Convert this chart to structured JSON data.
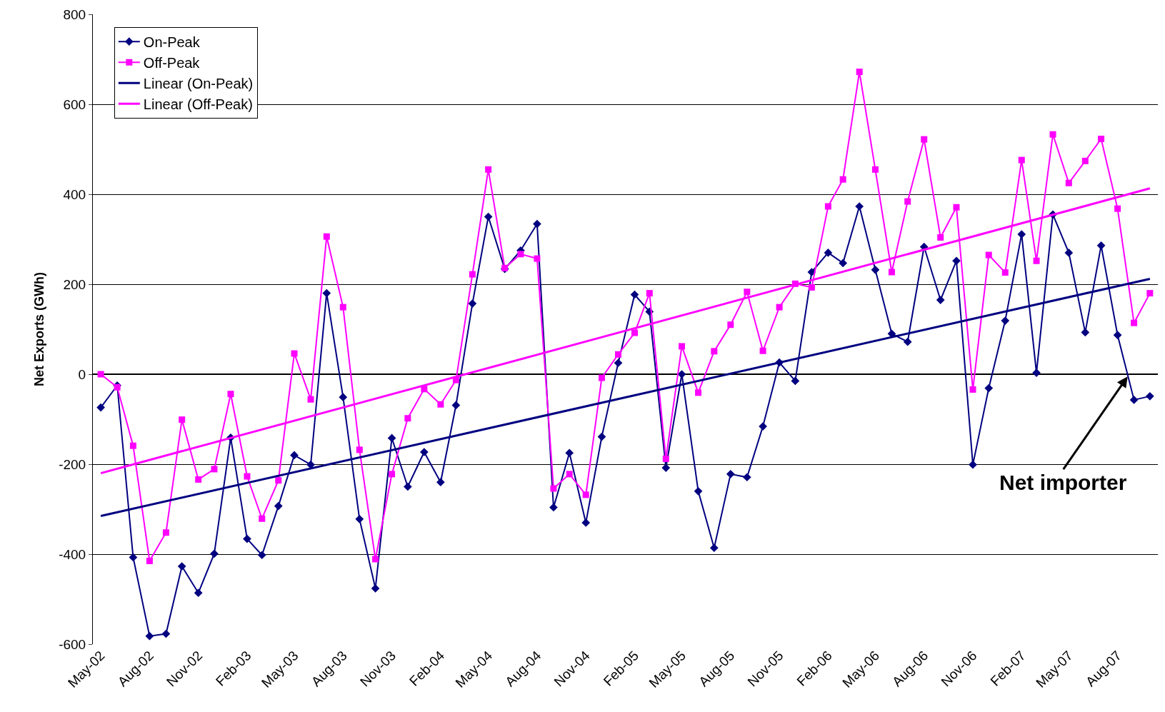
{
  "chart_data": {
    "type": "line",
    "ylabel": "Net Exports (GWh)",
    "x": [
      "2002-05",
      "2002-06",
      "2002-07",
      "2002-08",
      "2002-09",
      "2002-10",
      "2002-11",
      "2002-12",
      "2003-01",
      "2003-02",
      "2003-03",
      "2003-04",
      "2003-05",
      "2003-06",
      "2003-07",
      "2003-08",
      "2003-09",
      "2003-10",
      "2003-11",
      "2003-12",
      "2004-01",
      "2004-02",
      "2004-03",
      "2004-04",
      "2004-05",
      "2004-06",
      "2004-07",
      "2004-08",
      "2004-09",
      "2004-10",
      "2004-11",
      "2004-12",
      "2005-01",
      "2005-02",
      "2005-03",
      "2005-04",
      "2005-05",
      "2005-06",
      "2005-07",
      "2005-08",
      "2005-09",
      "2005-10",
      "2005-11",
      "2005-12",
      "2006-01",
      "2006-02",
      "2006-03",
      "2006-04",
      "2006-05",
      "2006-06",
      "2006-07",
      "2006-08",
      "2006-09",
      "2006-10",
      "2006-11",
      "2006-12",
      "2007-01",
      "2007-02",
      "2007-03",
      "2007-04",
      "2007-05",
      "2007-06",
      "2007-07",
      "2007-08",
      "2007-09",
      "2007-10"
    ],
    "series": [
      {
        "name": "On-Peak",
        "color": "#000080",
        "marker": "diamond",
        "values": [
          -74,
          -25,
          -407,
          -582,
          -577,
          -427,
          -486,
          -399,
          -141,
          -366,
          -402,
          -293,
          -180,
          -201,
          180,
          -51,
          -322,
          -476,
          -142,
          -250,
          -173,
          -240,
          -69,
          157,
          350,
          234,
          275,
          334,
          -296,
          -175,
          -330,
          -139,
          25,
          177,
          139,
          -208,
          0,
          -260,
          -386,
          -222,
          -229,
          -116,
          26,
          -15,
          227,
          270,
          247,
          373,
          232,
          90,
          72,
          283,
          165,
          252,
          -201,
          -31,
          119,
          311,
          3,
          355,
          270,
          93,
          286,
          87,
          -57,
          -49
        ]
      },
      {
        "name": "Off-Peak",
        "color": "#ff00ff",
        "marker": "square",
        "values": [
          0,
          -29,
          -159,
          -415,
          -352,
          -101,
          -234,
          -211,
          -44,
          -227,
          -321,
          -236,
          46,
          -56,
          306,
          149,
          -168,
          -411,
          -222,
          -98,
          -33,
          -67,
          -13,
          222,
          455,
          236,
          267,
          257,
          -254,
          -222,
          -268,
          -8,
          44,
          92,
          180,
          -188,
          62,
          -41,
          51,
          110,
          183,
          52,
          149,
          201,
          193,
          373,
          433,
          672,
          455,
          227,
          384,
          522,
          304,
          371,
          -34,
          265,
          226,
          476,
          252,
          533,
          425,
          474,
          523,
          368,
          114,
          180
        ]
      },
      {
        "name": "Linear (On-Peak)",
        "color": "#000080",
        "marker": "none",
        "x": [
          "2002-05",
          "2007-10"
        ],
        "values": [
          -315,
          212
        ]
      },
      {
        "name": "Linear (Off-Peak)",
        "color": "#ff00ff",
        "marker": "none",
        "x": [
          "2002-05",
          "2007-10"
        ],
        "values": [
          -220,
          413
        ]
      }
    ],
    "annotations": [
      {
        "text": "Net importer",
        "x": "2007-08-20",
        "y": -5
      }
    ],
    "xlim": [
      "2002-04-16",
      "2007-10-16"
    ],
    "xticks": [
      {
        "value": "2002-05",
        "label": "May-02"
      },
      {
        "value": "2002-08",
        "label": "Aug-02"
      },
      {
        "value": "2002-11",
        "label": "Nov-02"
      },
      {
        "value": "2003-02",
        "label": "Feb-03"
      },
      {
        "value": "2003-05",
        "label": "May-03"
      },
      {
        "value": "2003-08",
        "label": "Aug-03"
      },
      {
        "value": "2003-11",
        "label": "Nov-03"
      },
      {
        "value": "2004-02",
        "label": "Feb-04"
      },
      {
        "value": "2004-05",
        "label": "May-04"
      },
      {
        "value": "2004-08",
        "label": "Aug-04"
      },
      {
        "value": "2004-11",
        "label": "Nov-04"
      },
      {
        "value": "2005-02",
        "label": "Feb-05"
      },
      {
        "value": "2005-05",
        "label": "May-05"
      },
      {
        "value": "2005-08",
        "label": "Aug-05"
      },
      {
        "value": "2005-11",
        "label": "Nov-05"
      },
      {
        "value": "2006-02",
        "label": "Feb-06"
      },
      {
        "value": "2006-05",
        "label": "May-06"
      },
      {
        "value": "2006-08",
        "label": "Aug-06"
      },
      {
        "value": "2006-11",
        "label": "Nov-06"
      },
      {
        "value": "2007-02",
        "label": "Feb-07"
      },
      {
        "value": "2007-05",
        "label": "May-07"
      },
      {
        "value": "2007-08",
        "label": "Aug-07"
      }
    ],
    "ylim": [
      -600,
      800
    ],
    "yticks": [
      -600,
      -400,
      -200,
      0,
      200,
      400,
      600,
      800
    ],
    "grid": "y",
    "legend": "top left",
    "line_style": "solid"
  }
}
